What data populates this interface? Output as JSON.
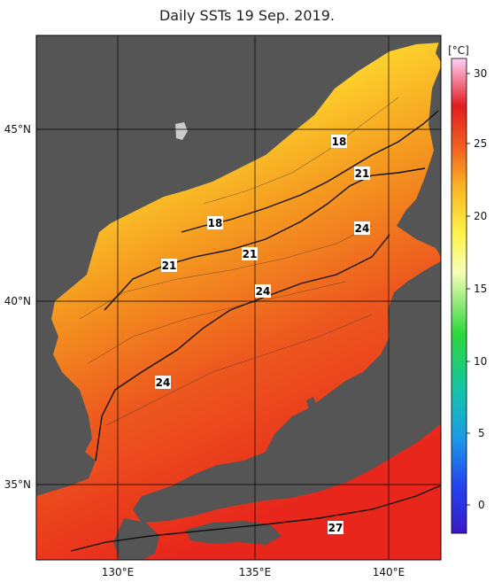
{
  "title": "Daily SSTs 19 Sep. 2019.",
  "map": {
    "lon_ticks": [
      "130°E",
      "135°E",
      "140°E"
    ],
    "lat_ticks": [
      "45°N",
      "40°N",
      "35°N"
    ],
    "contour_labels": [
      "18",
      "18",
      "21",
      "21",
      "21",
      "24",
      "24",
      "24",
      "27"
    ]
  },
  "colorbar": {
    "unit": "[°C]",
    "ticks": [
      "30",
      "25",
      "20",
      "15",
      "10",
      "5",
      "0"
    ]
  },
  "colors": {
    "land": "#555555",
    "warm": "#e8261c",
    "mid": "#f6a81e",
    "cool": "#fde95a"
  }
}
